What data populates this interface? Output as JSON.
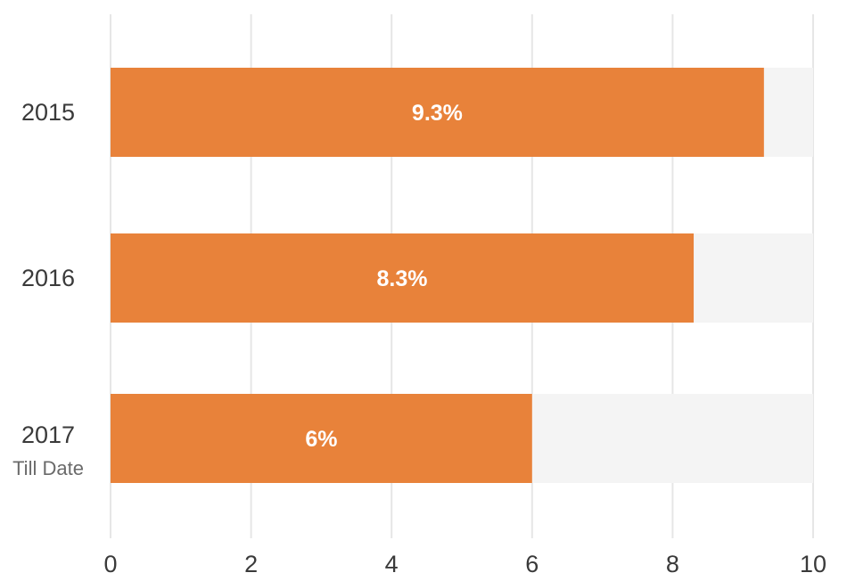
{
  "chart_data": {
    "type": "bar",
    "orientation": "horizontal",
    "categories": [
      "2015",
      "2016",
      "2017"
    ],
    "category_sublabels": [
      "",
      "",
      "Till Date"
    ],
    "values": [
      9.3,
      8.3,
      6
    ],
    "data_labels": [
      "9.3%",
      "8.3%",
      "6%"
    ],
    "xlim": [
      0,
      10
    ],
    "x_ticks": [
      0,
      2,
      4,
      6,
      8,
      10
    ],
    "x_tick_labels": [
      "0",
      "2",
      "4",
      "6",
      "8",
      "10"
    ],
    "grid": true,
    "background_track": true,
    "legend": "none",
    "colors": {
      "bar": "#E8823A",
      "track": "#F4F4F4",
      "grid": "#E6E6E6",
      "label": "#FFFFFF"
    }
  }
}
